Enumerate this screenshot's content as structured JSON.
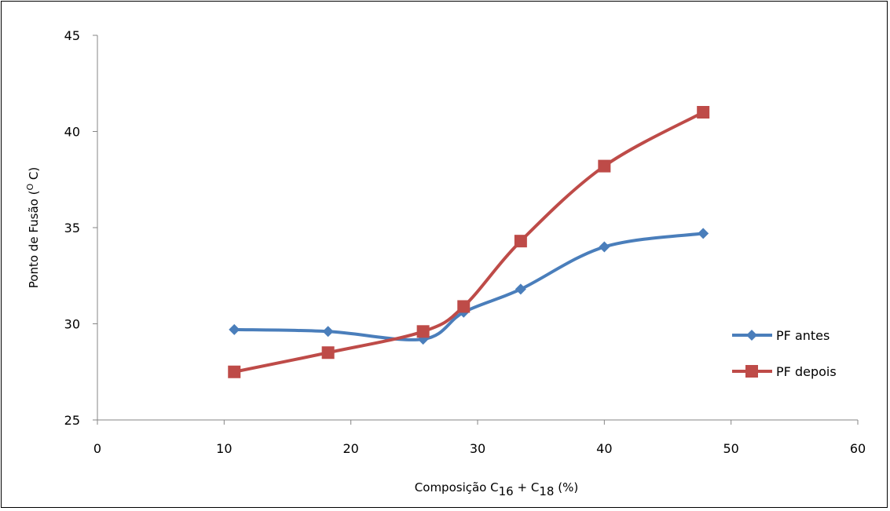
{
  "chart_data": {
    "type": "line",
    "xlabel": {
      "prefix": "Composição",
      "term1_base": "C",
      "term1_sub": "16",
      "op": "+",
      "term2_base": "C",
      "term2_sub": "18",
      "unit": "(%)"
    },
    "ylabel": {
      "prefix": "Ponto de Fusão (",
      "sup": "O",
      "suffix": " C)"
    },
    "xlim": [
      0,
      60
    ],
    "ylim": [
      25,
      45
    ],
    "x_ticks": [
      "0",
      "10",
      "20",
      "30",
      "40",
      "50",
      "60"
    ],
    "y_ticks": [
      "25",
      "30",
      "35",
      "40",
      "45"
    ],
    "grid": false,
    "legend_position": "right",
    "series": [
      {
        "name": "PF antes",
        "color": "#4a7ebb",
        "marker": "diamond",
        "x": [
          10.8,
          18.2,
          25.7,
          28.9,
          33.4,
          40.0,
          47.8
        ],
        "y": [
          29.7,
          29.6,
          29.2,
          30.6,
          31.8,
          34.0,
          34.7
        ]
      },
      {
        "name": "PF depois",
        "color": "#be4b48",
        "marker": "square",
        "x": [
          10.8,
          18.2,
          25.7,
          28.9,
          33.4,
          40.0,
          47.8
        ],
        "y": [
          27.5,
          28.5,
          29.6,
          30.9,
          34.3,
          38.2,
          41.0
        ]
      }
    ]
  }
}
